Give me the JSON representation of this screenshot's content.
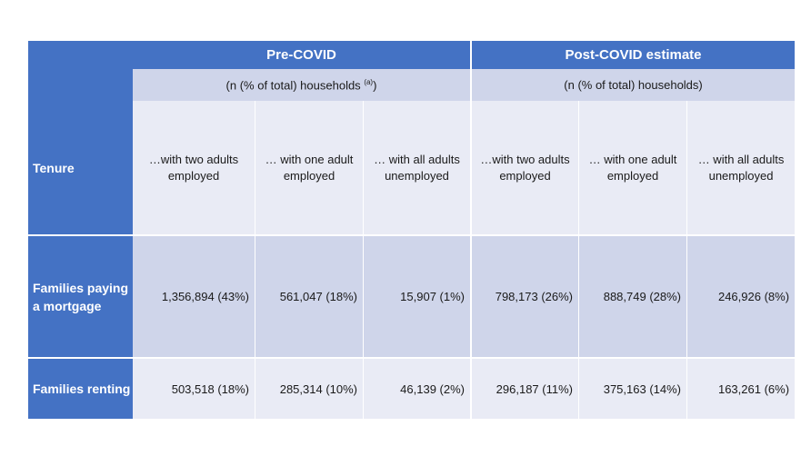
{
  "table": {
    "groups": [
      {
        "title": "Pre-COVID",
        "subtitle": "(n (% of total) households",
        "subtitle_sup": "(a)",
        "subtitle_close": ")"
      },
      {
        "title": "Post-COVID estimate",
        "subtitle": "(n (% of total) households)"
      }
    ],
    "tenure_label": "Tenure",
    "column_headers": [
      "…with two adults employed",
      "… with one adult employed",
      "… with all adults unemployed",
      "…with two adults employed",
      "… with one adult employed",
      "… with all adults unemployed"
    ],
    "rows": [
      {
        "label": "Families paying a mortgage",
        "values": [
          "1,356,894 (43%)",
          "561,047 (18%)",
          "15,907 (1%)",
          "798,173 (26%)",
          "888,749 (28%)",
          "246,926 (8%)"
        ]
      },
      {
        "label": "Families renting",
        "values": [
          "503,518 (18%)",
          "285,314 (10%)",
          "46,139 (2%)",
          "296,187 (11%)",
          "375,163 (14%)",
          "163,261 (6%)"
        ]
      }
    ]
  },
  "colors": {
    "header_blue": "#4472c4",
    "band_dark": "#cfd5ea",
    "band_light": "#e9ebf5"
  }
}
